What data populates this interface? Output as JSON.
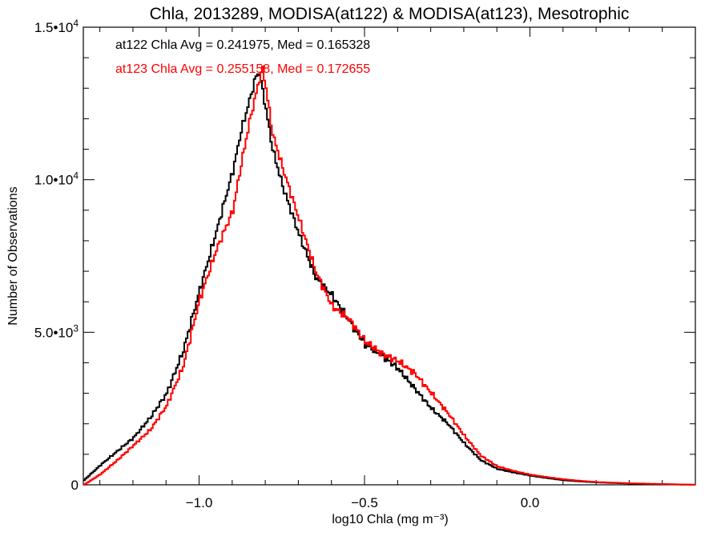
{
  "chart_data": {
    "type": "line",
    "title": "Chla, 2013289, MODISA(at122) & MODISA(at123), Mesotrophic",
    "xlabel": "log10 Chla (mg m⁻³)",
    "ylabel": "Number of Observations",
    "xlim": [
      -1.35,
      0.5
    ],
    "ylim": [
      0,
      15000
    ],
    "x_ticks": [
      {
        "value": -1.0,
        "label": "−1.0"
      },
      {
        "value": -0.5,
        "label": "−0.5"
      },
      {
        "value": 0.0,
        "label": "0.0"
      }
    ],
    "y_ticks": [
      {
        "value": 0,
        "mantissa": "0",
        "exponent": ""
      },
      {
        "value": 5000,
        "mantissa": "5.0•10",
        "exponent": "3"
      },
      {
        "value": 10000,
        "mantissa": "1.0•10",
        "exponent": "4"
      },
      {
        "value": 15000,
        "mantissa": "1.5•10",
        "exponent": "4"
      }
    ],
    "annotations": [
      {
        "text": "at122 Chla Avg = 0.241975, Med = 0.165328",
        "color": "#000000"
      },
      {
        "text": "at123 Chla Avg = 0.255158, Med = 0.172655",
        "color": "#ff0000"
      }
    ],
    "series": [
      {
        "color": "#000000",
        "x": [
          -1.35,
          -1.3,
          -1.25,
          -1.2,
          -1.15,
          -1.1,
          -1.05,
          -1.0,
          -0.95,
          -0.9,
          -0.875,
          -0.85,
          -0.83,
          -0.82,
          -0.8,
          -0.78,
          -0.75,
          -0.7,
          -0.65,
          -0.6,
          -0.55,
          -0.5,
          -0.45,
          -0.4,
          -0.35,
          -0.3,
          -0.25,
          -0.2,
          -0.15,
          -0.1,
          -0.05,
          0.0,
          0.05,
          0.1,
          0.15,
          0.2,
          0.3,
          0.4,
          0.5
        ],
        "values": [
          150,
          650,
          1100,
          1550,
          2200,
          3000,
          4400,
          6400,
          8300,
          10300,
          11600,
          12600,
          13400,
          13500,
          12300,
          11000,
          9800,
          8200,
          6800,
          6200,
          5400,
          4600,
          4250,
          3800,
          3150,
          2500,
          2000,
          1350,
          800,
          520,
          400,
          300,
          220,
          150,
          110,
          80,
          40,
          20,
          0
        ]
      },
      {
        "color": "#ff0000",
        "x": [
          -1.35,
          -1.3,
          -1.25,
          -1.2,
          -1.15,
          -1.1,
          -1.05,
          -1.0,
          -0.95,
          -0.9,
          -0.875,
          -0.85,
          -0.82,
          -0.81,
          -0.8,
          -0.78,
          -0.75,
          -0.7,
          -0.65,
          -0.6,
          -0.55,
          -0.5,
          -0.45,
          -0.4,
          -0.35,
          -0.3,
          -0.25,
          -0.2,
          -0.15,
          -0.1,
          -0.05,
          0.0,
          0.05,
          0.1,
          0.15,
          0.2,
          0.3,
          0.4,
          0.5
        ],
        "values": [
          0,
          350,
          800,
          1300,
          1800,
          2600,
          3900,
          6100,
          7700,
          9000,
          10500,
          11900,
          13300,
          13650,
          13000,
          11500,
          10400,
          8700,
          7000,
          5850,
          5450,
          4700,
          4300,
          4050,
          3650,
          3000,
          2350,
          1600,
          950,
          600,
          450,
          330,
          250,
          180,
          130,
          90,
          50,
          25,
          0
        ]
      }
    ]
  }
}
